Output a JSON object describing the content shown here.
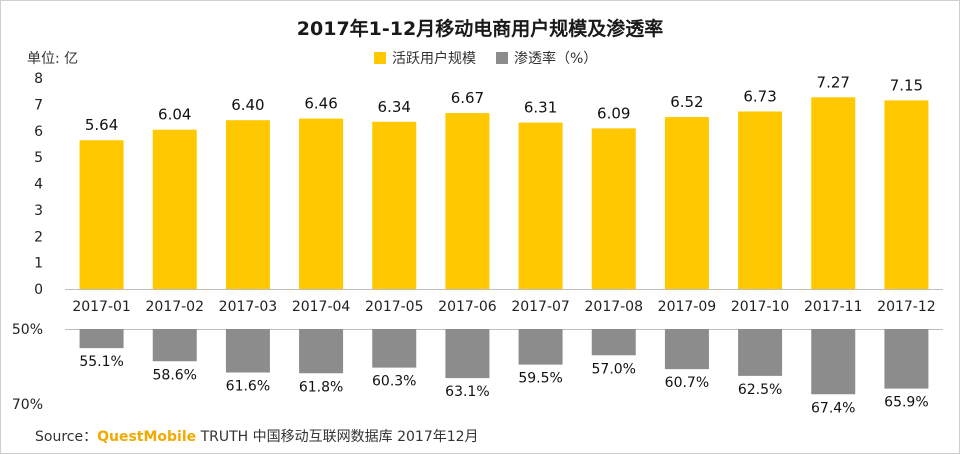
{
  "colors": {
    "bar": "#FFC800",
    "rate_bar": "#8C8C8C",
    "axis": "#bfbfbf",
    "brand": "#F2A900"
  },
  "chart_data": [
    {
      "type": "bar",
      "title": "2017年1-12月移动电商用户规模及渗透率",
      "unit_label": "单位: 亿",
      "legend_position": "top-center",
      "legend": [
        {
          "label": "活跃用户规模",
          "color": "#FFC800"
        },
        {
          "label": "渗透率（%）",
          "color": "#8C8C8C"
        }
      ],
      "categories": [
        "2017-01",
        "2017-02",
        "2017-03",
        "2017-04",
        "2017-05",
        "2017-06",
        "2017-07",
        "2017-08",
        "2017-09",
        "2017-10",
        "2017-11",
        "2017-12"
      ],
      "series": [
        {
          "name": "活跃用户规模",
          "values": [
            5.64,
            6.04,
            6.4,
            6.46,
            6.34,
            6.67,
            6.31,
            6.09,
            6.52,
            6.73,
            7.27,
            7.15
          ]
        }
      ],
      "value_labels": [
        "5.64",
        "6.04",
        "6.40",
        "6.46",
        "6.34",
        "6.67",
        "6.31",
        "6.09",
        "6.52",
        "6.73",
        "7.27",
        "7.15"
      ],
      "ylim": [
        0,
        8
      ],
      "yticks": [
        "0",
        "1",
        "2",
        "3",
        "4",
        "5",
        "6",
        "7",
        "8"
      ],
      "grid": false
    },
    {
      "type": "bar",
      "orientation": "downward",
      "categories": [
        "2017-01",
        "2017-02",
        "2017-03",
        "2017-04",
        "2017-05",
        "2017-06",
        "2017-07",
        "2017-08",
        "2017-09",
        "2017-10",
        "2017-11",
        "2017-12"
      ],
      "series": [
        {
          "name": "渗透率（%）",
          "values": [
            55.1,
            58.6,
            61.6,
            61.8,
            60.3,
            63.1,
            59.5,
            57.0,
            60.7,
            62.5,
            67.4,
            65.9
          ]
        }
      ],
      "value_labels": [
        "55.1%",
        "58.6%",
        "61.6%",
        "61.8%",
        "60.3%",
        "63.1%",
        "59.5%",
        "57.0%",
        "60.7%",
        "62.5%",
        "67.4%",
        "65.9%"
      ],
      "ylim": [
        50,
        70
      ],
      "yticks": [
        "50%",
        "70%"
      ]
    }
  ],
  "source": {
    "prefix": "Source：",
    "brand": "QuestMobile",
    "text": " TRUTH 中国移动互联网数据库 2017年12月"
  }
}
